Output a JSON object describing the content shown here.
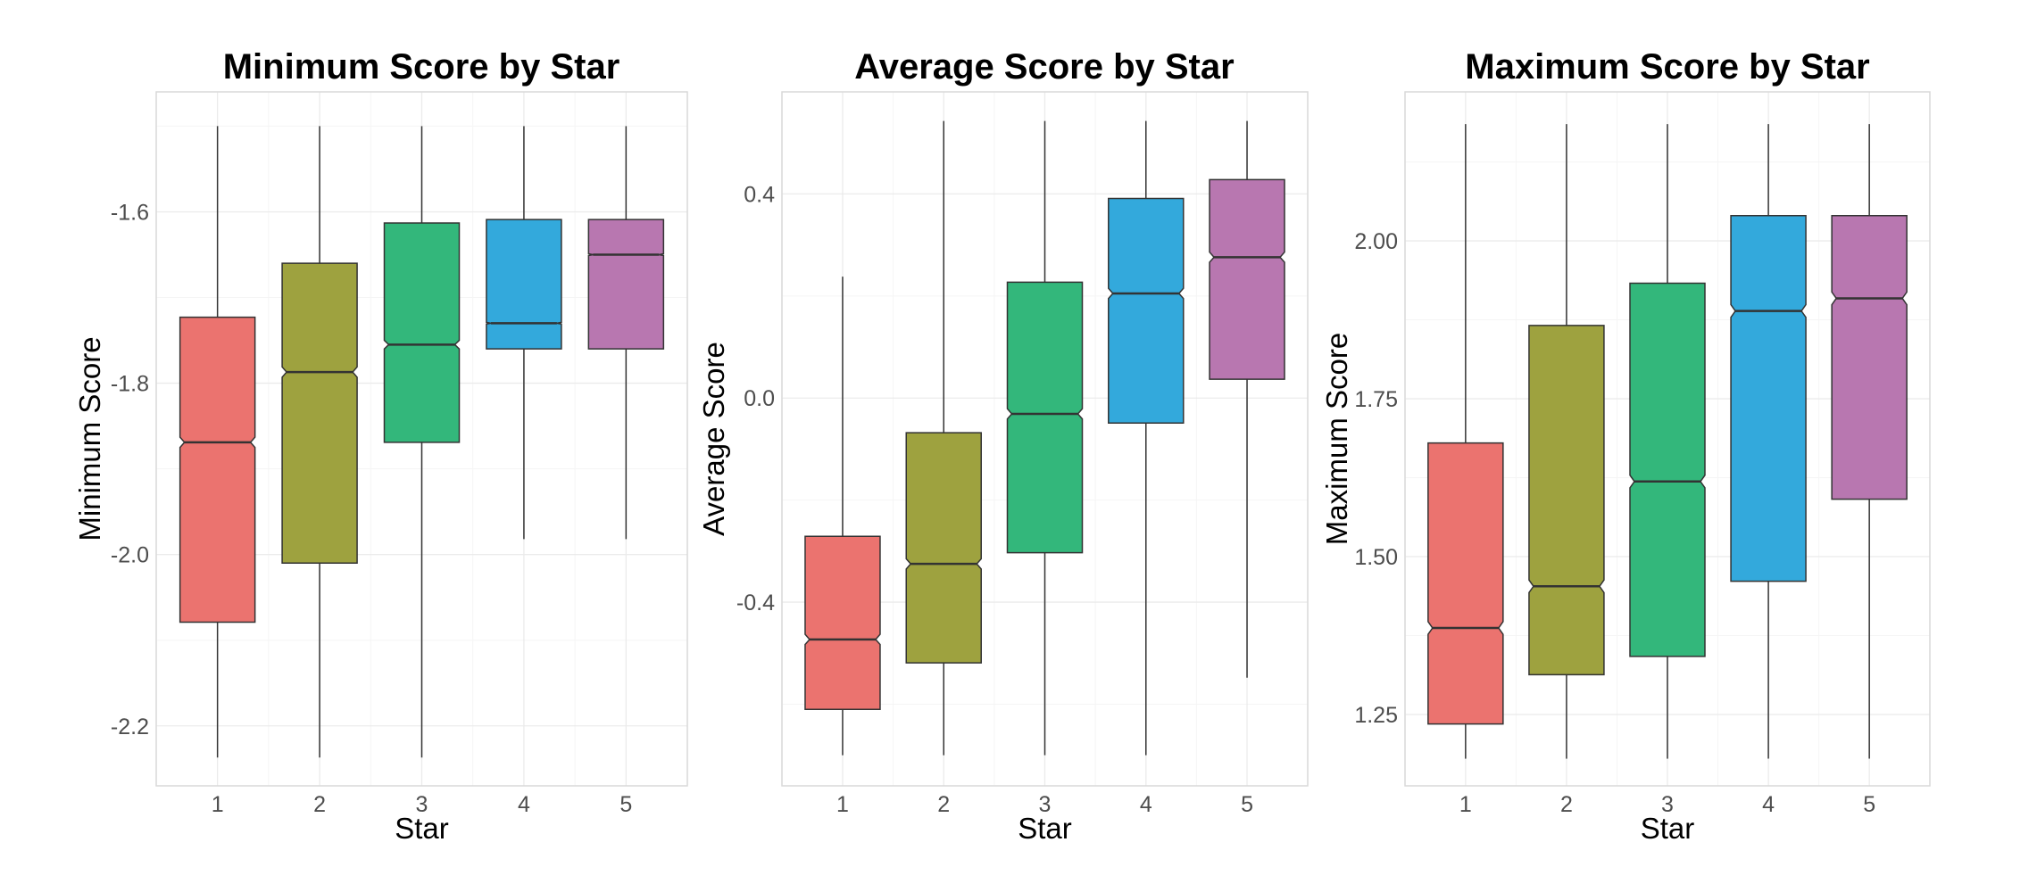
{
  "chart_data": [
    {
      "type": "boxplot",
      "notched": true,
      "title": "Minimum Score by Star",
      "xlabel": "Star",
      "ylabel": "Minimum Score",
      "categories": [
        "1",
        "2",
        "3",
        "4",
        "5"
      ],
      "ylim": [
        -2.27,
        -1.46
      ],
      "yticks": [
        -2.2,
        -2.0,
        -1.8,
        -1.6
      ],
      "ytick_labels": [
        "-2.2",
        "-2.0",
        "-1.8",
        "-1.6"
      ],
      "boxes": [
        {
          "category": "1",
          "whisker_low": -2.237,
          "q1": -2.079,
          "median": -1.869,
          "q3": -1.723,
          "whisker_high": -1.5,
          "notch_low": -1.875,
          "notch_high": -1.863
        },
        {
          "category": "2",
          "whisker_low": -2.237,
          "q1": -2.01,
          "median": -1.787,
          "q3": -1.66,
          "whisker_high": -1.5,
          "notch_low": -1.793,
          "notch_high": -1.781
        },
        {
          "category": "3",
          "whisker_low": -2.237,
          "q1": -1.869,
          "median": -1.755,
          "q3": -1.613,
          "whisker_high": -1.5,
          "notch_low": -1.76,
          "notch_high": -1.75
        },
        {
          "category": "4",
          "whisker_low": -1.982,
          "q1": -1.76,
          "median": -1.73,
          "q3": -1.609,
          "whisker_high": -1.5,
          "notch_low": -1.731,
          "notch_high": -1.729
        },
        {
          "category": "5",
          "whisker_low": -1.982,
          "q1": -1.76,
          "median": -1.65,
          "q3": -1.609,
          "whisker_high": -1.5,
          "notch_low": -1.651,
          "notch_high": -1.649
        }
      ]
    },
    {
      "type": "boxplot",
      "notched": true,
      "title": "Average Score by Star",
      "xlabel": "Star",
      "ylabel": "Average Score",
      "categories": [
        "1",
        "2",
        "3",
        "4",
        "5"
      ],
      "ylim": [
        -0.76,
        0.6
      ],
      "yticks": [
        -0.4,
        0.0,
        0.4
      ],
      "ytick_labels": [
        "-0.4",
        "0.0",
        "0.4"
      ],
      "boxes": [
        {
          "category": "1",
          "whisker_low": -0.7,
          "q1": -0.61,
          "median": -0.473,
          "q3": -0.271,
          "whisker_high": 0.238,
          "notch_low": -0.483,
          "notch_high": -0.463
        },
        {
          "category": "2",
          "whisker_low": -0.7,
          "q1": -0.519,
          "median": -0.325,
          "q3": -0.068,
          "whisker_high": 0.543,
          "notch_low": -0.335,
          "notch_high": -0.315
        },
        {
          "category": "3",
          "whisker_low": -0.7,
          "q1": -0.303,
          "median": -0.031,
          "q3": 0.227,
          "whisker_high": 0.543,
          "notch_low": -0.041,
          "notch_high": -0.021
        },
        {
          "category": "4",
          "whisker_low": -0.7,
          "q1": -0.049,
          "median": 0.205,
          "q3": 0.391,
          "whisker_high": 0.543,
          "notch_low": 0.195,
          "notch_high": 0.215
        },
        {
          "category": "5",
          "whisker_low": -0.548,
          "q1": 0.037,
          "median": 0.276,
          "q3": 0.428,
          "whisker_high": 0.543,
          "notch_low": 0.266,
          "notch_high": 0.286
        }
      ]
    },
    {
      "type": "boxplot",
      "notched": true,
      "title": "Maximum Score by Star",
      "xlabel": "Star",
      "ylabel": "Maximum Score",
      "categories": [
        "1",
        "2",
        "3",
        "4",
        "5"
      ],
      "ylim": [
        1.137,
        2.236
      ],
      "yticks": [
        1.25,
        1.5,
        1.75,
        2.0
      ],
      "ytick_labels": [
        "1.25",
        "1.50",
        "1.75",
        "2.00"
      ],
      "boxes": [
        {
          "category": "1",
          "whisker_low": 1.18,
          "q1": 1.235,
          "median": 1.387,
          "q3": 1.68,
          "whisker_high": 2.185,
          "notch_low": 1.377,
          "notch_high": 1.397
        },
        {
          "category": "2",
          "whisker_low": 1.18,
          "q1": 1.313,
          "median": 1.453,
          "q3": 1.866,
          "whisker_high": 2.185,
          "notch_low": 1.443,
          "notch_high": 1.463
        },
        {
          "category": "3",
          "whisker_low": 1.18,
          "q1": 1.342,
          "median": 1.619,
          "q3": 1.933,
          "whisker_high": 2.185,
          "notch_low": 1.609,
          "notch_high": 1.629
        },
        {
          "category": "4",
          "whisker_low": 1.18,
          "q1": 1.461,
          "median": 1.889,
          "q3": 2.04,
          "whisker_high": 2.185,
          "notch_low": 1.879,
          "notch_high": 1.899
        },
        {
          "category": "5",
          "whisker_low": 1.18,
          "q1": 1.591,
          "median": 1.909,
          "q3": 2.04,
          "whisker_high": 2.185,
          "notch_low": 1.899,
          "notch_high": 1.919
        }
      ]
    }
  ],
  "colors": {
    "categories": [
      "#EB736F",
      "#9EA23F",
      "#33B77B",
      "#33A9DC",
      "#B877B0"
    ],
    "box_outline": "#333333",
    "whisker": "#333333",
    "median_line": "#333333",
    "background": "#ffffff"
  }
}
